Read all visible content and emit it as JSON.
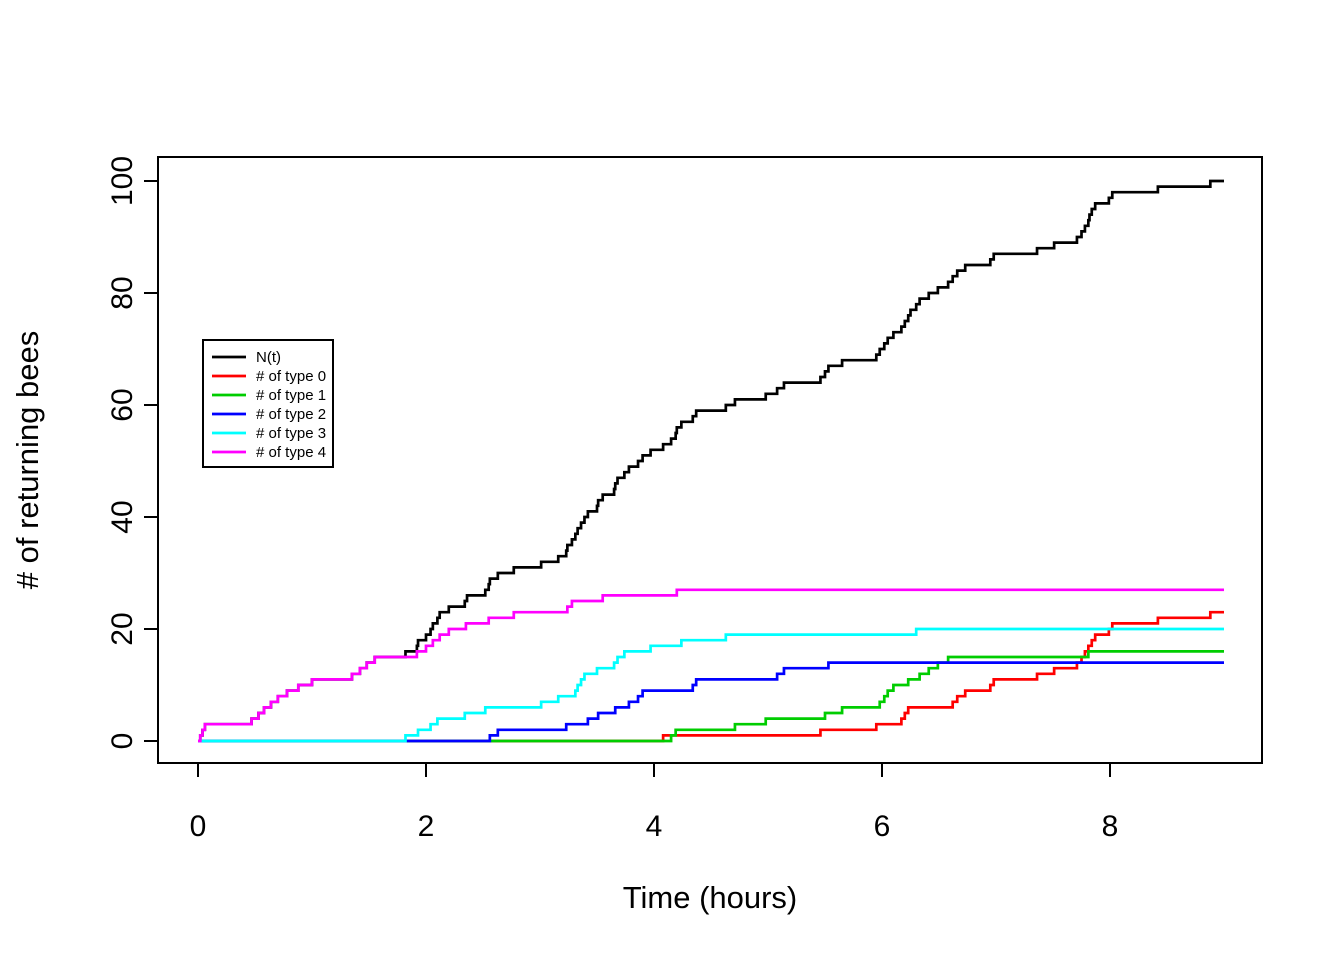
{
  "chart_data": {
    "type": "line",
    "subtype": "step",
    "title": "",
    "xlabel": "Time (hours)",
    "ylabel": "# of returning bees",
    "xlim": [
      -0.36,
      9.36
    ],
    "ylim": [
      -4,
      104
    ],
    "xticks": [
      0,
      2,
      4,
      6,
      8
    ],
    "yticks": [
      0,
      20,
      40,
      60,
      80,
      100
    ],
    "x_end": 9,
    "grid": "off",
    "legend_position": "left-middle",
    "axis_color": "#000000",
    "background": "#ffffff",
    "series": [
      {
        "name": "N(t)",
        "color": "#000000",
        "steps": [
          [
            0,
            0
          ],
          [
            0.02,
            1
          ],
          [
            0.04,
            2
          ],
          [
            0.06,
            3
          ],
          [
            0.47,
            4
          ],
          [
            0.53,
            5
          ],
          [
            0.58,
            6
          ],
          [
            0.64,
            7
          ],
          [
            0.7,
            8
          ],
          [
            0.78,
            9
          ],
          [
            0.88,
            10
          ],
          [
            1.0,
            11
          ],
          [
            1.35,
            12
          ],
          [
            1.42,
            13
          ],
          [
            1.48,
            14
          ],
          [
            1.55,
            15
          ],
          [
            1.82,
            16
          ],
          [
            1.92,
            17
          ],
          [
            1.93,
            18
          ],
          [
            2.0,
            19
          ],
          [
            2.04,
            20
          ],
          [
            2.06,
            21
          ],
          [
            2.1,
            22
          ],
          [
            2.12,
            23
          ],
          [
            2.2,
            24
          ],
          [
            2.34,
            25
          ],
          [
            2.36,
            26
          ],
          [
            2.52,
            27
          ],
          [
            2.55,
            28
          ],
          [
            2.56,
            29
          ],
          [
            2.63,
            30
          ],
          [
            2.77,
            31
          ],
          [
            3.01,
            32
          ],
          [
            3.16,
            33
          ],
          [
            3.23,
            34
          ],
          [
            3.24,
            35
          ],
          [
            3.28,
            36
          ],
          [
            3.31,
            37
          ],
          [
            3.33,
            38
          ],
          [
            3.36,
            39
          ],
          [
            3.39,
            40
          ],
          [
            3.42,
            41
          ],
          [
            3.5,
            42
          ],
          [
            3.51,
            43
          ],
          [
            3.55,
            44
          ],
          [
            3.65,
            45
          ],
          [
            3.66,
            46
          ],
          [
            3.68,
            47
          ],
          [
            3.74,
            48
          ],
          [
            3.78,
            49
          ],
          [
            3.86,
            50
          ],
          [
            3.9,
            51
          ],
          [
            3.97,
            52
          ],
          [
            4.08,
            53
          ],
          [
            4.15,
            54
          ],
          [
            4.19,
            55
          ],
          [
            4.2,
            56
          ],
          [
            4.24,
            57
          ],
          [
            4.34,
            58
          ],
          [
            4.37,
            59
          ],
          [
            4.63,
            60
          ],
          [
            4.71,
            61
          ],
          [
            4.98,
            62
          ],
          [
            5.08,
            63
          ],
          [
            5.14,
            64
          ],
          [
            5.46,
            65
          ],
          [
            5.5,
            66
          ],
          [
            5.53,
            67
          ],
          [
            5.65,
            68
          ],
          [
            5.95,
            69
          ],
          [
            5.98,
            70
          ],
          [
            6.02,
            71
          ],
          [
            6.05,
            72
          ],
          [
            6.1,
            73
          ],
          [
            6.17,
            74
          ],
          [
            6.2,
            75
          ],
          [
            6.23,
            76
          ],
          [
            6.25,
            77
          ],
          [
            6.3,
            78
          ],
          [
            6.33,
            79
          ],
          [
            6.41,
            80
          ],
          [
            6.49,
            81
          ],
          [
            6.58,
            82
          ],
          [
            6.62,
            83
          ],
          [
            6.66,
            84
          ],
          [
            6.73,
            85
          ],
          [
            6.95,
            86
          ],
          [
            6.98,
            87
          ],
          [
            7.36,
            88
          ],
          [
            7.51,
            89
          ],
          [
            7.71,
            90
          ],
          [
            7.75,
            91
          ],
          [
            7.78,
            92
          ],
          [
            7.81,
            93
          ],
          [
            7.82,
            94
          ],
          [
            7.84,
            95
          ],
          [
            7.87,
            96
          ],
          [
            7.99,
            97
          ],
          [
            8.02,
            98
          ],
          [
            8.42,
            99
          ],
          [
            8.88,
            100
          ]
        ]
      },
      {
        "name": "# of type 0",
        "color": "#FF0000",
        "steps": [
          [
            0,
            0
          ],
          [
            4.08,
            1
          ],
          [
            5.46,
            2
          ],
          [
            5.95,
            3
          ],
          [
            6.17,
            4
          ],
          [
            6.2,
            5
          ],
          [
            6.23,
            6
          ],
          [
            6.62,
            7
          ],
          [
            6.66,
            8
          ],
          [
            6.73,
            9
          ],
          [
            6.95,
            10
          ],
          [
            6.98,
            11
          ],
          [
            7.36,
            12
          ],
          [
            7.51,
            13
          ],
          [
            7.71,
            14
          ],
          [
            7.75,
            15
          ],
          [
            7.78,
            16
          ],
          [
            7.81,
            17
          ],
          [
            7.84,
            18
          ],
          [
            7.87,
            19
          ],
          [
            7.99,
            20
          ],
          [
            8.02,
            21
          ],
          [
            8.42,
            22
          ],
          [
            8.88,
            23
          ]
        ]
      },
      {
        "name": "# of type 1",
        "color": "#00CD00",
        "steps": [
          [
            0,
            0
          ],
          [
            4.15,
            1
          ],
          [
            4.19,
            2
          ],
          [
            4.71,
            3
          ],
          [
            4.98,
            4
          ],
          [
            5.5,
            5
          ],
          [
            5.65,
            6
          ],
          [
            5.98,
            7
          ],
          [
            6.02,
            8
          ],
          [
            6.05,
            9
          ],
          [
            6.1,
            10
          ],
          [
            6.23,
            11
          ],
          [
            6.33,
            12
          ],
          [
            6.41,
            13
          ],
          [
            6.49,
            14
          ],
          [
            6.58,
            15
          ],
          [
            7.81,
            16
          ]
        ]
      },
      {
        "name": "# of type 2",
        "color": "#0000FF",
        "steps": [
          [
            0,
            0
          ],
          [
            2.56,
            1
          ],
          [
            2.63,
            2
          ],
          [
            3.23,
            3
          ],
          [
            3.42,
            4
          ],
          [
            3.51,
            5
          ],
          [
            3.66,
            6
          ],
          [
            3.78,
            7
          ],
          [
            3.86,
            8
          ],
          [
            3.9,
            9
          ],
          [
            4.34,
            10
          ],
          [
            4.37,
            11
          ],
          [
            5.08,
            12
          ],
          [
            5.14,
            13
          ],
          [
            5.53,
            14
          ]
        ]
      },
      {
        "name": "# of type 3",
        "color": "#00FFFF",
        "steps": [
          [
            0,
            0
          ],
          [
            1.82,
            1
          ],
          [
            1.93,
            2
          ],
          [
            2.04,
            3
          ],
          [
            2.1,
            4
          ],
          [
            2.34,
            5
          ],
          [
            2.52,
            6
          ],
          [
            3.01,
            7
          ],
          [
            3.16,
            8
          ],
          [
            3.31,
            9
          ],
          [
            3.33,
            10
          ],
          [
            3.36,
            11
          ],
          [
            3.39,
            12
          ],
          [
            3.5,
            13
          ],
          [
            3.65,
            14
          ],
          [
            3.68,
            15
          ],
          [
            3.74,
            16
          ],
          [
            3.97,
            17
          ],
          [
            4.24,
            18
          ],
          [
            4.63,
            19
          ],
          [
            6.3,
            20
          ]
        ]
      },
      {
        "name": "# of type 4",
        "color": "#FF00FF",
        "steps": [
          [
            0,
            0
          ],
          [
            0.02,
            1
          ],
          [
            0.04,
            2
          ],
          [
            0.06,
            3
          ],
          [
            0.47,
            4
          ],
          [
            0.53,
            5
          ],
          [
            0.58,
            6
          ],
          [
            0.64,
            7
          ],
          [
            0.7,
            8
          ],
          [
            0.78,
            9
          ],
          [
            0.88,
            10
          ],
          [
            1.0,
            11
          ],
          [
            1.35,
            12
          ],
          [
            1.42,
            13
          ],
          [
            1.48,
            14
          ],
          [
            1.55,
            15
          ],
          [
            1.92,
            16
          ],
          [
            2.0,
            17
          ],
          [
            2.06,
            18
          ],
          [
            2.12,
            19
          ],
          [
            2.2,
            20
          ],
          [
            2.35,
            21
          ],
          [
            2.55,
            22
          ],
          [
            2.77,
            23
          ],
          [
            3.24,
            24
          ],
          [
            3.28,
            25
          ],
          [
            3.55,
            26
          ],
          [
            4.2,
            27
          ]
        ]
      }
    ],
    "legend_labels": [
      "N(t)",
      "# of type 0",
      "# of type 1",
      "# of type 2",
      "# of type 3",
      "# of type 4"
    ]
  }
}
